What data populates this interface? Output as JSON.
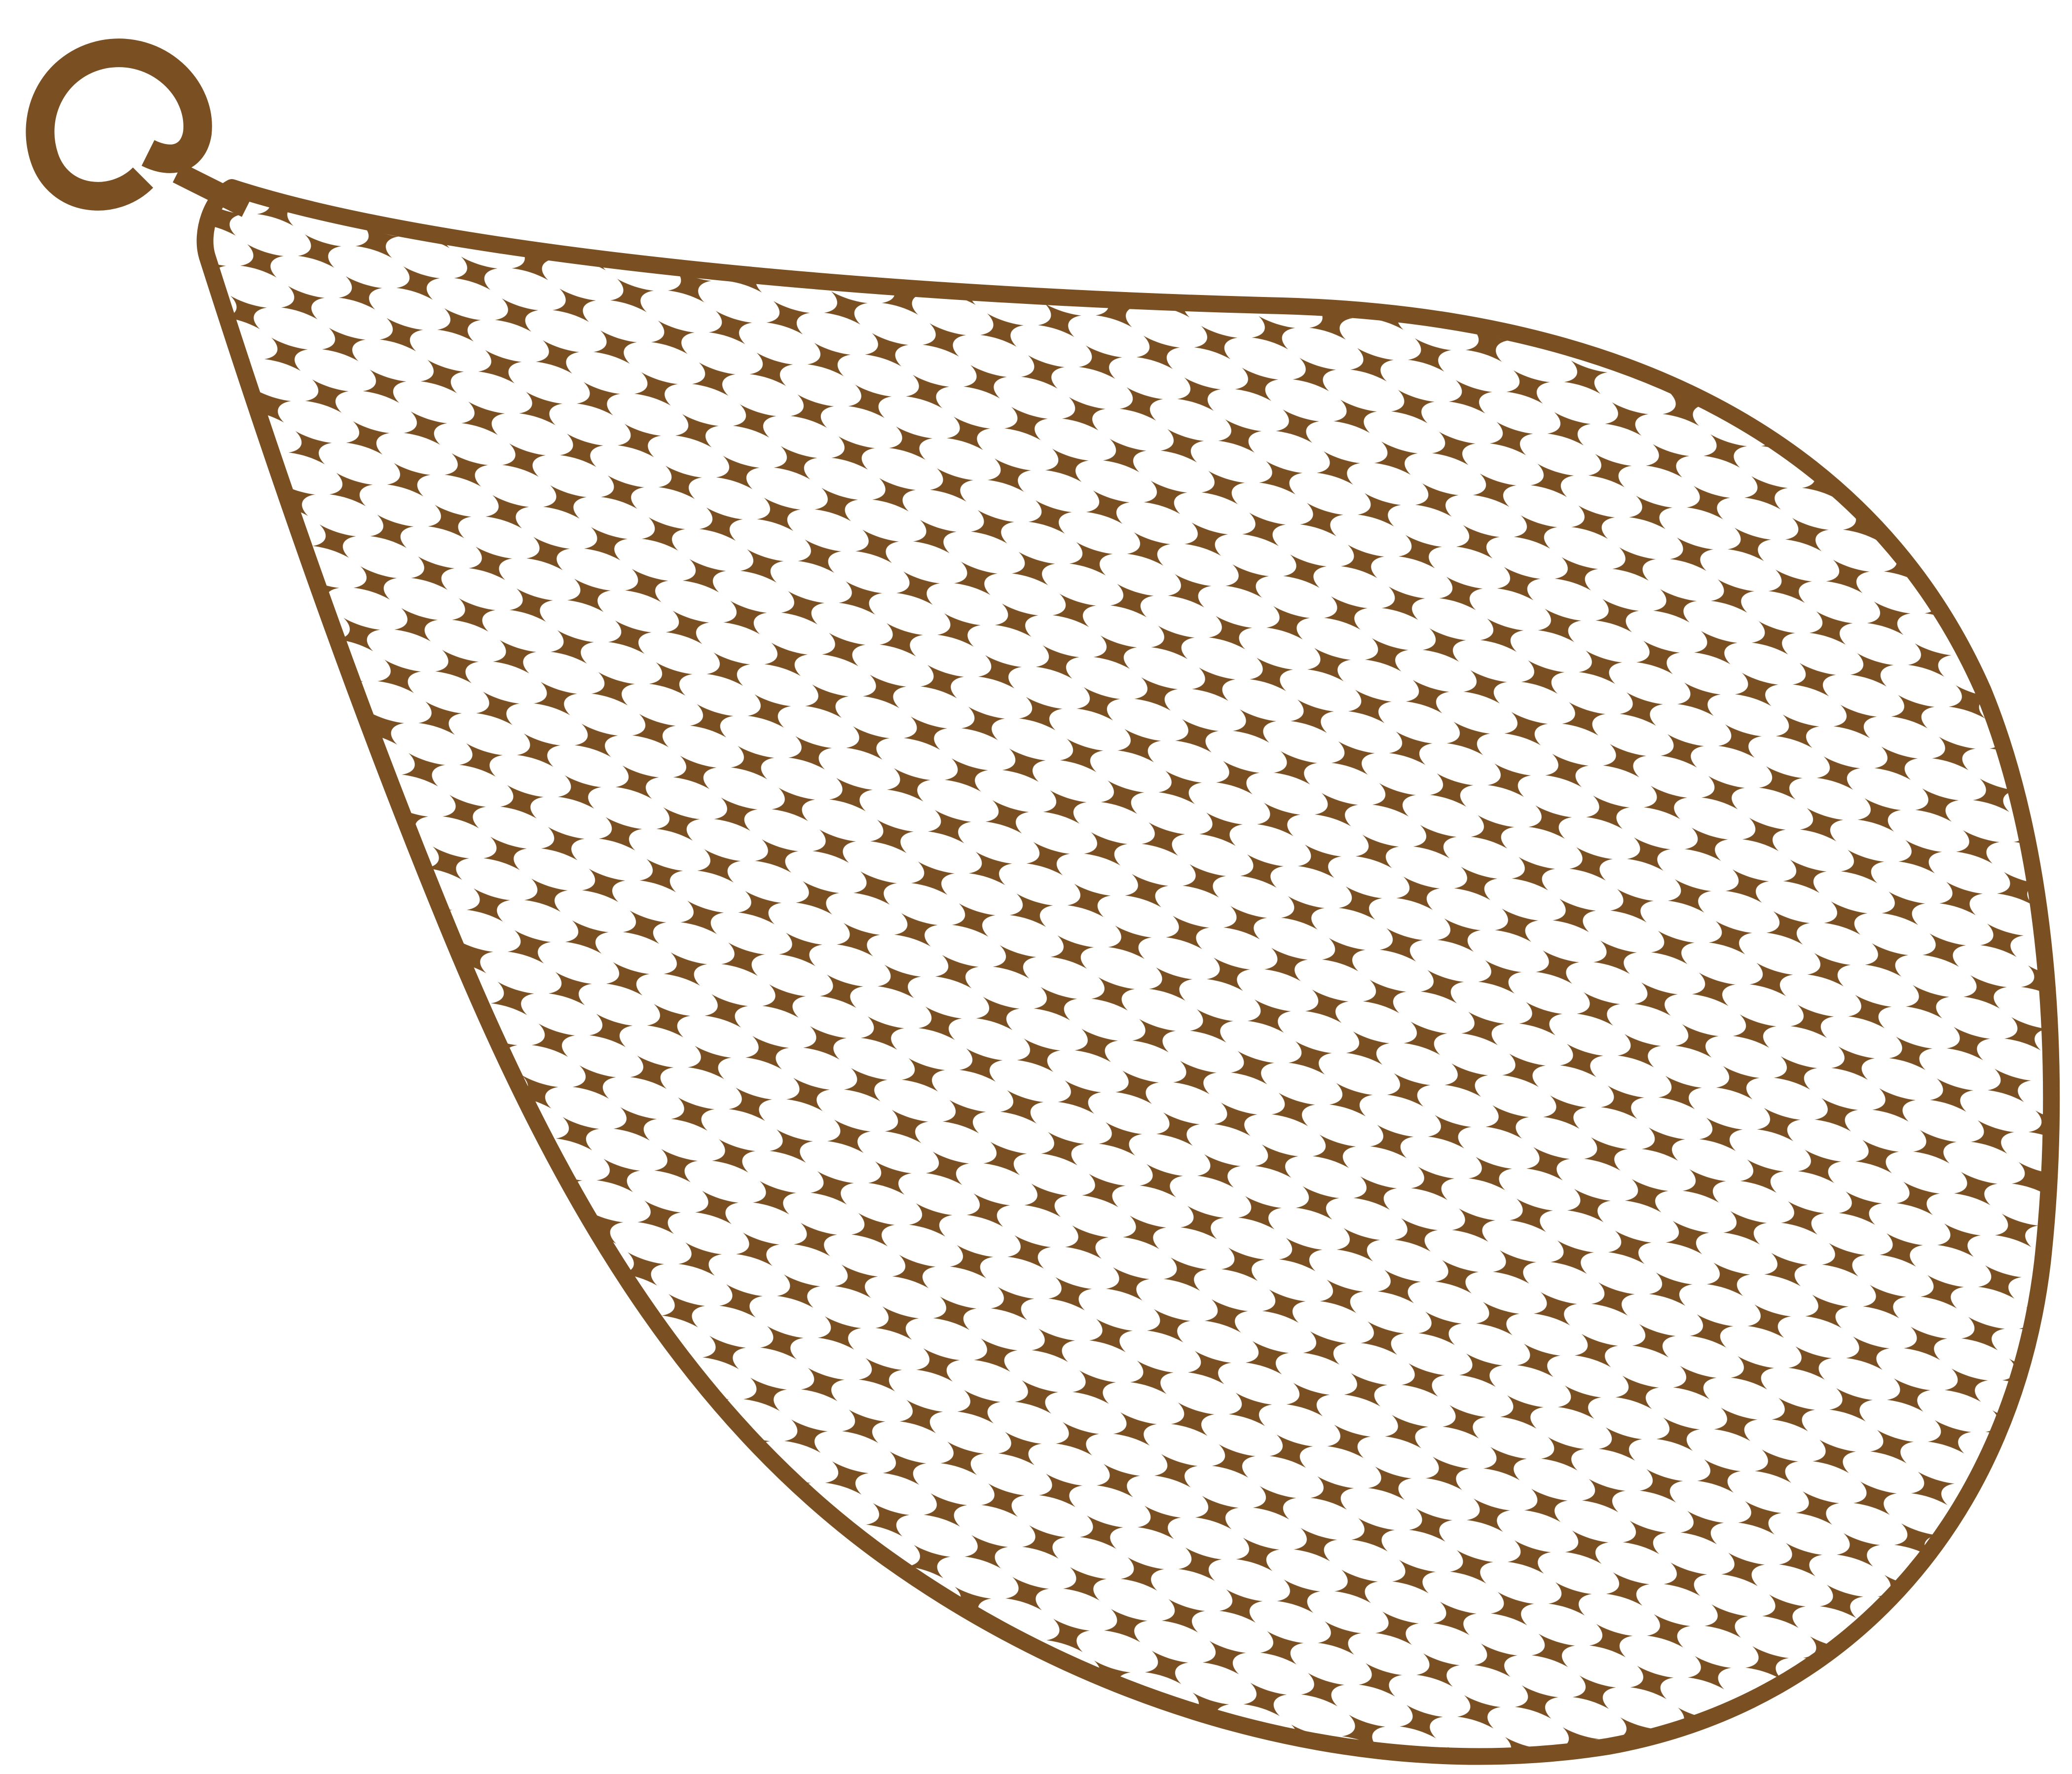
{
  "illustration": {
    "subject": "",
    "colors": {
      "background": "#ffffff",
      "net": "#7a5023",
      "potato_fill": "#c08e7c",
      "potato_shade": "#9b6a58",
      "potato_outline": "#111111",
      "sprout": "#d98c6e"
    },
    "icons": {
      "hanging_ring": "hanging-ring-icon",
      "net_bag": "mesh-net-bag-icon",
      "potato": "potato-icon"
    }
  }
}
